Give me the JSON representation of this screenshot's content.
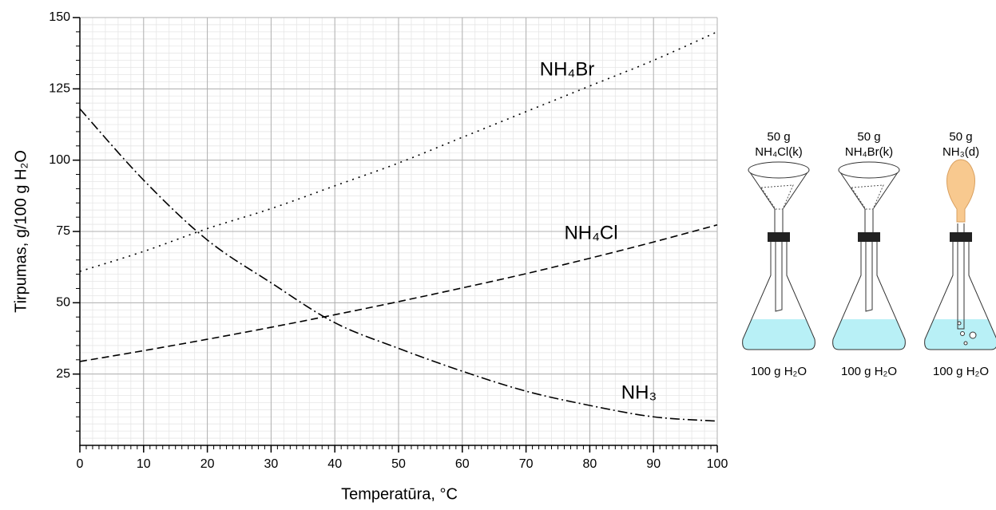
{
  "chart_data": {
    "type": "line",
    "x_label": "Temperatūra, °C",
    "y_label": "Tirpumas, g/100 g H₂O",
    "x": [
      0,
      10,
      20,
      30,
      40,
      50,
      60,
      70,
      80,
      90,
      100
    ],
    "series": [
      {
        "name": "NH₄Br",
        "color": "#000000",
        "style": "dotted",
        "values": [
          61,
          68,
          76,
          83,
          91,
          99,
          108,
          117,
          126,
          135,
          145
        ]
      },
      {
        "name": "NH₄Cl",
        "color": "#000000",
        "style": "dashed",
        "values": [
          29.4,
          33.2,
          37.2,
          41.4,
          45.8,
          50.4,
          55.2,
          60.2,
          65.6,
          71.3,
          77.3
        ]
      },
      {
        "name": "NH₃",
        "color": "#000000",
        "style": "dashdot",
        "values": [
          118,
          93,
          72,
          57,
          43,
          34,
          26,
          19,
          14,
          10,
          8.5
        ]
      }
    ],
    "xlim": [
      0,
      100
    ],
    "xticks": [
      0,
      10,
      20,
      30,
      40,
      50,
      60,
      70,
      80,
      90,
      100
    ],
    "ylim": [
      0,
      150
    ],
    "yticks": [
      25,
      50,
      75,
      100,
      125,
      150
    ],
    "grid": true,
    "minor_grid": true
  },
  "diagram": {
    "flasks": [
      {
        "amount": "50 g",
        "substance": "NH₄Cl(k)",
        "water": "100 g H₂O"
      },
      {
        "amount": "50 g",
        "substance": "NH₄Br(k)",
        "water": "100 g H₂O"
      },
      {
        "amount": "50 g",
        "substance": "NH₃(d)",
        "water": "100 g H₂O"
      }
    ]
  }
}
